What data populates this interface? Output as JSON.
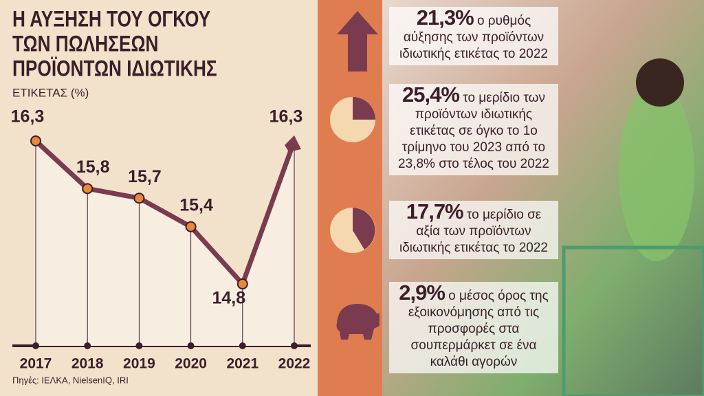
{
  "chart_data": {
    "type": "line",
    "title_lines": [
      "Η ΑΥΞΗΣΗ ΤΟΥ ΟΓΚΟΥ",
      "ΤΩΝ ΠΩΛΗΣΕΩΝ",
      "ΠΡΟΪΟΝΤΩΝ ΙΔΙΩΤΙΚΗΣ"
    ],
    "subtitle": "ΕΤΙΚΕΤΑΣ (%)",
    "categories": [
      "2017",
      "2018",
      "2019",
      "2020",
      "2021",
      "2022"
    ],
    "values": [
      16.3,
      15.8,
      15.7,
      15.4,
      14.8,
      16.3
    ],
    "value_labels": [
      "16,3",
      "15,8",
      "15,7",
      "15,4",
      "14,8",
      "16,3"
    ],
    "color": "#7a3b4f",
    "marker_color": "#e8893a",
    "source": "Πηγές: ΙΕΛΚΑ, NielsenIQ, IRI"
  },
  "stats": [
    {
      "highlight": "21,3%",
      "text": "ο ρυθμός αύξησης των προϊόντων ιδιωτικής ετικέτας το 2022"
    },
    {
      "highlight": "25,4%",
      "text": "το μερίδιο των προϊόντων ιδιωτικής ετικέτας σε όγκο το 1ο τρίμηνο του 2023 από το 23,8% στο τέλος του 2022"
    },
    {
      "highlight": "17,7%",
      "text": "το μερίδιο σε αξία των προϊόντων ιδιωτικής ετικέτας το 2022"
    },
    {
      "highlight": "2,9%",
      "text": "ο μέσος όρος της εξοικονόμησης από τις προσφορές στα σουπερμάρκετ σε ένα καλάθι αγορών"
    }
  ]
}
